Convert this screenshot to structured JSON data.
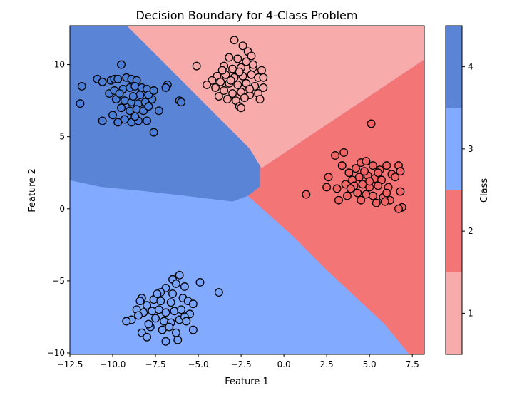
{
  "chart_data": {
    "type": "scatter",
    "title": "Decision Boundary for 4-Class Problem",
    "xlabel": "Feature 1",
    "ylabel": "Feature 2",
    "xlim": [
      -12.5,
      8.2
    ],
    "ylim": [
      -10.1,
      12.7
    ],
    "xticks": [
      -12.5,
      -10.0,
      -7.5,
      -5.0,
      -2.5,
      0.0,
      2.5,
      5.0,
      7.5
    ],
    "xtick_labels": [
      "−12.5",
      "−10.0",
      "−7.5",
      "−5.0",
      "−2.5",
      "0.0",
      "2.5",
      "5.0",
      "7.5"
    ],
    "yticks": [
      -10,
      -5,
      0,
      5,
      10
    ],
    "ytick_labels": [
      "−10",
      "−5",
      "0",
      "5",
      "10"
    ],
    "grid": false,
    "colorbar": {
      "label": "Class",
      "ticks": [
        1,
        2,
        3,
        4
      ],
      "tick_labels": [
        "1",
        "2",
        "3",
        "4"
      ],
      "range": [
        0.5,
        4.5
      ]
    },
    "class_colors": {
      "1": "#f7abab",
      "2": "#f47575",
      "3": "#82aaff",
      "4": "#5a84d6"
    },
    "marker_colors": {
      "1": "#f7a5a5",
      "2": "#f26464",
      "3": "#78a3fb",
      "4": "#4a7dd8"
    },
    "regions": [
      {
        "class": 3,
        "polygon": [
          [
            -12.5,
            12.7
          ],
          [
            8.2,
            12.7
          ],
          [
            8.2,
            -10.1
          ],
          [
            -12.5,
            -10.1
          ]
        ]
      },
      {
        "class": 4,
        "polygon": [
          [
            -12.5,
            12.7
          ],
          [
            -9.17,
            12.7
          ],
          [
            -2.02,
            4.2
          ],
          [
            -1.4,
            3.0
          ],
          [
            -1.4,
            1.53
          ],
          [
            -2.1,
            0.9
          ],
          [
            -3.0,
            0.5
          ],
          [
            -5.76,
            0.9
          ],
          [
            -8.26,
            1.24
          ],
          [
            -10.75,
            1.53
          ],
          [
            -12.5,
            1.98
          ]
        ]
      },
      {
        "class": 1,
        "polygon": [
          [
            -9.17,
            12.7
          ],
          [
            8.2,
            12.7
          ],
          [
            8.2,
            10.35
          ],
          [
            -1.3,
            2.82
          ],
          [
            -1.4,
            3.0
          ],
          [
            -2.02,
            4.2
          ]
        ]
      },
      {
        "class": 2,
        "polygon": [
          [
            8.2,
            10.35
          ],
          [
            8.2,
            -10.1
          ],
          [
            7.33,
            -10.1
          ],
          [
            5.88,
            -8.0
          ],
          [
            2.55,
            -4.3
          ],
          [
            0.47,
            -1.83
          ],
          [
            -2.1,
            0.9
          ],
          [
            -1.4,
            1.53
          ],
          [
            -1.4,
            3.0
          ],
          [
            -1.3,
            2.82
          ]
        ]
      }
    ],
    "series": [
      {
        "class": 4,
        "points": [
          [
            -9.5,
            10.0
          ],
          [
            -11.8,
            8.5
          ],
          [
            -11.9,
            7.3
          ],
          [
            -10.9,
            9.0
          ],
          [
            -10.6,
            8.8
          ],
          [
            -10.1,
            8.9
          ],
          [
            -9.9,
            9.0
          ],
          [
            -9.7,
            9.0
          ],
          [
            -9.2,
            9.1
          ],
          [
            -8.9,
            9.0
          ],
          [
            -8.6,
            8.9
          ],
          [
            -10.2,
            8.0
          ],
          [
            -9.9,
            8.2
          ],
          [
            -9.4,
            8.3
          ],
          [
            -9.0,
            8.4
          ],
          [
            -8.7,
            8.5
          ],
          [
            -8.3,
            8.4
          ],
          [
            -8.0,
            8.3
          ],
          [
            -9.8,
            7.6
          ],
          [
            -9.3,
            7.5
          ],
          [
            -8.9,
            7.4
          ],
          [
            -8.5,
            7.3
          ],
          [
            -8.1,
            7.4
          ],
          [
            -7.7,
            7.6
          ],
          [
            -9.5,
            7.0
          ],
          [
            -9.0,
            6.8
          ],
          [
            -8.6,
            6.9
          ],
          [
            -8.2,
            6.8
          ],
          [
            -7.9,
            7.1
          ],
          [
            -10.0,
            6.5
          ],
          [
            -9.3,
            6.2
          ],
          [
            -8.9,
            6.0
          ],
          [
            -8.5,
            6.1
          ],
          [
            -8.0,
            6.1
          ],
          [
            -10.6,
            6.1
          ],
          [
            -9.7,
            6.0
          ],
          [
            -7.6,
            5.3
          ],
          [
            -7.3,
            6.8
          ],
          [
            -6.8,
            8.6
          ],
          [
            -6.9,
            8.4
          ],
          [
            -6.1,
            7.5
          ],
          [
            -6.0,
            7.4
          ],
          [
            -8.4,
            7.9
          ],
          [
            -7.9,
            7.9
          ],
          [
            -9.6,
            8.0
          ],
          [
            -8.8,
            7.8
          ],
          [
            -7.6,
            8.2
          ],
          [
            -8.7,
            6.4
          ]
        ]
      },
      {
        "class": 1,
        "points": [
          [
            -5.1,
            9.9
          ],
          [
            -2.9,
            11.7
          ],
          [
            -2.4,
            11.3
          ],
          [
            -2.1,
            10.9
          ],
          [
            -1.9,
            10.6
          ],
          [
            -3.2,
            10.5
          ],
          [
            -2.7,
            10.4
          ],
          [
            -2.2,
            10.2
          ],
          [
            -3.5,
            9.9
          ],
          [
            -3.0,
            9.7
          ],
          [
            -2.5,
            9.8
          ],
          [
            -1.8,
            9.8
          ],
          [
            -1.3,
            9.6
          ],
          [
            -3.9,
            9.2
          ],
          [
            -3.4,
            9.3
          ],
          [
            -2.9,
            9.1
          ],
          [
            -2.4,
            9.2
          ],
          [
            -1.9,
            9.3
          ],
          [
            -1.5,
            9.1
          ],
          [
            -4.2,
            8.9
          ],
          [
            -3.7,
            8.8
          ],
          [
            -3.2,
            8.7
          ],
          [
            -2.7,
            8.6
          ],
          [
            -2.2,
            8.7
          ],
          [
            -1.7,
            8.5
          ],
          [
            -1.2,
            8.4
          ],
          [
            -4.0,
            8.4
          ],
          [
            -3.5,
            8.2
          ],
          [
            -3.0,
            8.0
          ],
          [
            -2.5,
            8.1
          ],
          [
            -2.0,
            7.9
          ],
          [
            -1.5,
            8.0
          ],
          [
            -3.8,
            7.8
          ],
          [
            -3.3,
            7.6
          ],
          [
            -2.8,
            7.5
          ],
          [
            -2.3,
            7.7
          ],
          [
            -1.4,
            7.6
          ],
          [
            -2.6,
            7.1
          ],
          [
            -2.5,
            7.0
          ],
          [
            -4.5,
            8.6
          ],
          [
            -1.2,
            9.1
          ],
          [
            -1.8,
            10.0
          ],
          [
            -2.6,
            9.5
          ],
          [
            -3.1,
            8.9
          ],
          [
            -2.0,
            8.3
          ],
          [
            -3.6,
            9.6
          ]
        ]
      },
      {
        "class": 2,
        "points": [
          [
            1.3,
            1.0
          ],
          [
            5.1,
            5.9
          ],
          [
            6.9,
            0.1
          ],
          [
            6.7,
            0.0
          ],
          [
            3.5,
            3.9
          ],
          [
            3.0,
            3.7
          ],
          [
            2.6,
            2.2
          ],
          [
            2.5,
            1.5
          ],
          [
            3.1,
            1.4
          ],
          [
            3.6,
            1.7
          ],
          [
            3.2,
            0.6
          ],
          [
            3.7,
            0.9
          ],
          [
            3.4,
            3.0
          ],
          [
            3.8,
            2.5
          ],
          [
            4.2,
            2.8
          ],
          [
            4.5,
            3.2
          ],
          [
            4.8,
            3.3
          ],
          [
            5.2,
            3.0
          ],
          [
            5.6,
            2.7
          ],
          [
            6.0,
            3.0
          ],
          [
            6.7,
            3.0
          ],
          [
            6.8,
            2.6
          ],
          [
            6.3,
            2.4
          ],
          [
            4.0,
            2.0
          ],
          [
            4.4,
            2.2
          ],
          [
            4.9,
            2.3
          ],
          [
            5.3,
            2.1
          ],
          [
            5.7,
            2.0
          ],
          [
            4.1,
            1.6
          ],
          [
            4.6,
            1.7
          ],
          [
            5.0,
            1.5
          ],
          [
            5.5,
            1.6
          ],
          [
            6.1,
            1.5
          ],
          [
            6.8,
            1.2
          ],
          [
            4.3,
            1.1
          ],
          [
            4.8,
            1.0
          ],
          [
            5.2,
            0.9
          ],
          [
            5.8,
            0.8
          ],
          [
            6.2,
            0.6
          ],
          [
            5.9,
            0.5
          ],
          [
            4.5,
            0.6
          ],
          [
            5.4,
            0.4
          ],
          [
            6.0,
            1.1
          ],
          [
            3.9,
            1.4
          ],
          [
            4.7,
            2.6
          ],
          [
            5.5,
            2.5
          ],
          [
            6.5,
            2.2
          ],
          [
            5.0,
            1.9
          ]
        ]
      },
      {
        "class": 3,
        "points": [
          [
            -3.8,
            -5.8
          ],
          [
            -4.9,
            -5.1
          ],
          [
            -6.1,
            -4.6
          ],
          [
            -6.5,
            -4.9
          ],
          [
            -6.3,
            -5.2
          ],
          [
            -5.8,
            -5.4
          ],
          [
            -6.9,
            -5.5
          ],
          [
            -6.5,
            -5.9
          ],
          [
            -7.2,
            -5.8
          ],
          [
            -8.3,
            -6.2
          ],
          [
            -8.4,
            -6.4
          ],
          [
            -8.0,
            -6.7
          ],
          [
            -7.6,
            -6.3
          ],
          [
            -7.2,
            -6.4
          ],
          [
            -6.6,
            -6.5
          ],
          [
            -5.9,
            -6.2
          ],
          [
            -5.6,
            -6.4
          ],
          [
            -5.3,
            -6.6
          ],
          [
            -8.6,
            -7.0
          ],
          [
            -8.2,
            -7.2
          ],
          [
            -7.7,
            -7.1
          ],
          [
            -7.3,
            -7.0
          ],
          [
            -6.9,
            -7.2
          ],
          [
            -6.4,
            -7.1
          ],
          [
            -6.0,
            -7.0
          ],
          [
            -5.5,
            -7.3
          ],
          [
            -8.9,
            -7.7
          ],
          [
            -8.5,
            -7.4
          ],
          [
            -7.5,
            -7.6
          ],
          [
            -7.0,
            -7.8
          ],
          [
            -6.6,
            -7.9
          ],
          [
            -6.1,
            -7.7
          ],
          [
            -5.8,
            -7.5
          ],
          [
            -9.2,
            -7.8
          ],
          [
            -7.8,
            -8.2
          ],
          [
            -7.1,
            -8.4
          ],
          [
            -6.7,
            -8.2
          ],
          [
            -6.3,
            -8.6
          ],
          [
            -5.3,
            -8.4
          ],
          [
            -8.3,
            -8.6
          ],
          [
            -8.0,
            -8.9
          ],
          [
            -6.9,
            -9.2
          ],
          [
            -7.9,
            -8.0
          ],
          [
            -6.2,
            -9.1
          ],
          [
            -5.7,
            -7.8
          ],
          [
            -7.4,
            -5.9
          ]
        ]
      }
    ]
  }
}
